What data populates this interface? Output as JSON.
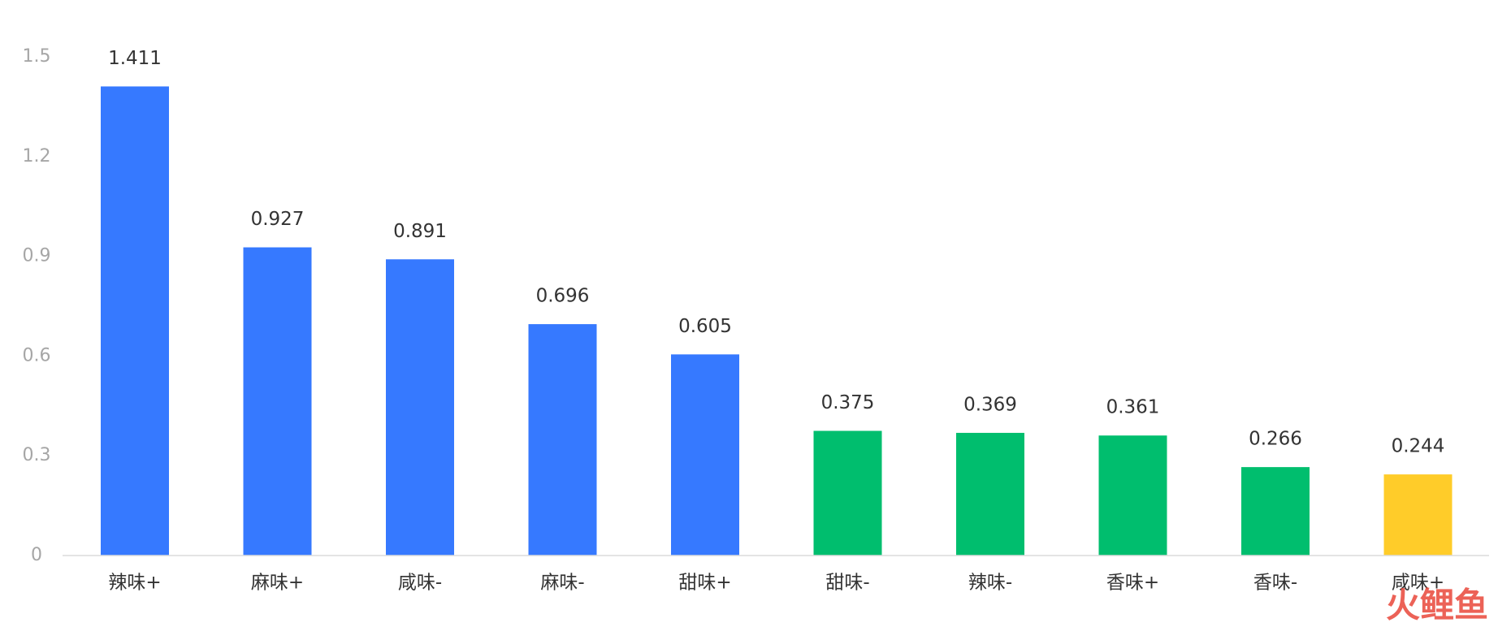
{
  "chart_data": {
    "type": "bar",
    "categories": [
      "辣味+",
      "麻味+",
      "咸味-",
      "麻味-",
      "甜味+",
      "甜味-",
      "辣味-",
      "香味+",
      "香味-",
      "咸味+"
    ],
    "values": [
      1.411,
      0.927,
      0.891,
      0.696,
      0.605,
      0.375,
      0.369,
      0.361,
      0.266,
      0.244
    ],
    "colors": [
      "#3679ff",
      "#3679ff",
      "#3679ff",
      "#3679ff",
      "#3679ff",
      "#00be6e",
      "#00be6e",
      "#00be6e",
      "#00be6e",
      "#ffcc29"
    ],
    "ylim": [
      0,
      1.5
    ],
    "yticks": [
      0,
      0.3,
      0.6,
      0.9,
      1.2,
      1.5
    ],
    "grid": false,
    "watermark": "火鲤鱼"
  }
}
